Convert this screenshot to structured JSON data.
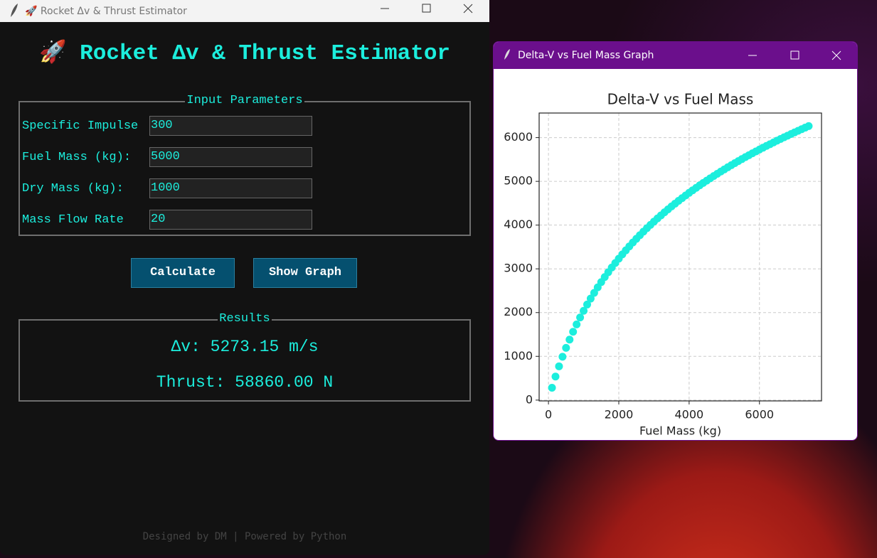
{
  "main_window": {
    "title": "🚀 Rocket Δv & Thrust Estimator"
  },
  "app": {
    "heading": "🚀 Rocket Δv & Thrust Estimator",
    "inputs": {
      "legend": "Input Parameters",
      "fields": [
        {
          "label": "Specific Impulse",
          "value": "300"
        },
        {
          "label": "Fuel Mass (kg):",
          "value": "5000"
        },
        {
          "label": "Dry Mass (kg):",
          "value": "1000"
        },
        {
          "label": "Mass Flow Rate",
          "value": "20"
        }
      ]
    },
    "buttons": [
      "Calculate",
      "Show Graph"
    ],
    "results": {
      "legend": "Results",
      "delta_v": "Δv: 5273.15 m/s",
      "thrust": "Thrust: 58860.00 N"
    },
    "footer": "Designed by DM | Powered by Python"
  },
  "graph_window": {
    "title": "Delta-V vs Fuel Mass Graph"
  },
  "chart_data": {
    "type": "scatter",
    "title": "Delta-V vs Fuel Mass",
    "x_label": "Fuel Mass (kg)",
    "color": "#1ceedd",
    "grid": true,
    "xlim": [
      -265,
      7765
    ],
    "ylim": [
      -19,
      6562
    ],
    "xticks": [
      0,
      2000,
      4000,
      6000
    ],
    "yticks": [
      0,
      1000,
      2000,
      3000,
      4000,
      5000,
      6000
    ],
    "x": [
      100,
      200,
      300,
      400,
      500,
      600,
      700,
      800,
      900,
      1000,
      1100,
      1200,
      1300,
      1400,
      1500,
      1600,
      1700,
      1800,
      1900,
      2000,
      2100,
      2200,
      2300,
      2400,
      2500,
      2600,
      2700,
      2800,
      2900,
      3000,
      3100,
      3200,
      3300,
      3400,
      3500,
      3600,
      3700,
      3800,
      3900,
      4000,
      4100,
      4200,
      4300,
      4400,
      4500,
      4600,
      4700,
      4800,
      4900,
      5000,
      5100,
      5200,
      5300,
      5400,
      5500,
      5600,
      5700,
      5800,
      5900,
      6000,
      6100,
      6200,
      6300,
      6400,
      6500,
      6600,
      6700,
      6800,
      6900,
      7000,
      7100,
      7200,
      7300,
      7400
    ],
    "values": [
      281,
      537,
      772,
      990,
      1193,
      1383,
      1562,
      1730,
      1889,
      2040,
      2184,
      2320,
      2451,
      2577,
      2697,
      2812,
      2923,
      3030,
      3133,
      3233,
      3330,
      3423,
      3514,
      3602,
      3687,
      3770,
      3850,
      3929,
      4005,
      4080,
      4153,
      4223,
      4293,
      4360,
      4427,
      4491,
      4555,
      4616,
      4677,
      4737,
      4795,
      4852,
      4908,
      4963,
      5017,
      5070,
      5122,
      5173,
      5224,
      5273,
      5322,
      5370,
      5417,
      5463,
      5509,
      5554,
      5598,
      5642,
      5685,
      5727,
      5769,
      5810,
      5850,
      5890,
      5930,
      5969,
      6007,
      6045,
      6083,
      6120,
      6156,
      6193,
      6228,
      6263
    ]
  }
}
